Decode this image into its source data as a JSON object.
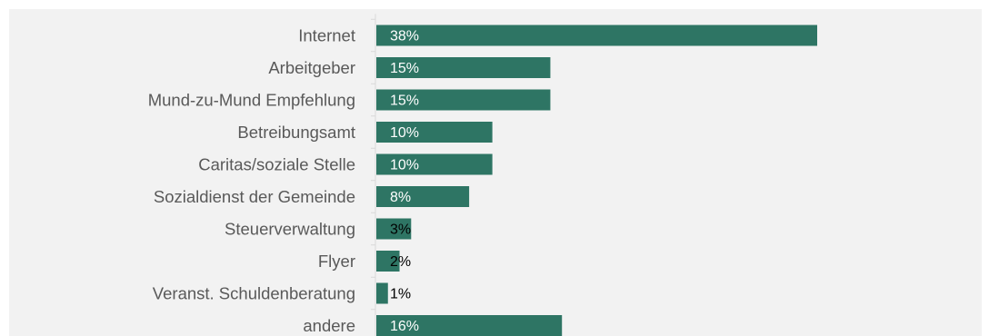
{
  "chart_data": {
    "type": "bar",
    "orientation": "horizontal",
    "categories": [
      "Internet",
      "Arbeitgeber",
      "Mund-zu-Mund Empfehlung",
      "Betreibungsamt",
      "Caritas/soziale Stelle",
      "Sozialdienst der Gemeinde",
      "Steuerverwaltung",
      "Flyer",
      "Veranst. Schuldenberatung",
      "andere"
    ],
    "values": [
      38,
      15,
      15,
      10,
      10,
      8,
      3,
      2,
      1,
      16
    ],
    "value_labels": [
      "38%",
      "15%",
      "15%",
      "10%",
      "10%",
      "8%",
      "3%",
      "2%",
      "1%",
      "16%"
    ],
    "value_unit": "%",
    "xlim": [
      0,
      55
    ],
    "grid": false,
    "legend": "none",
    "colors": {
      "bar": "#2e7564",
      "label_inside": "#ffffff",
      "label_outside": "#000000",
      "category_text": "#595959",
      "axis": "#d9d9d9",
      "background": "#f2f2f2"
    }
  }
}
